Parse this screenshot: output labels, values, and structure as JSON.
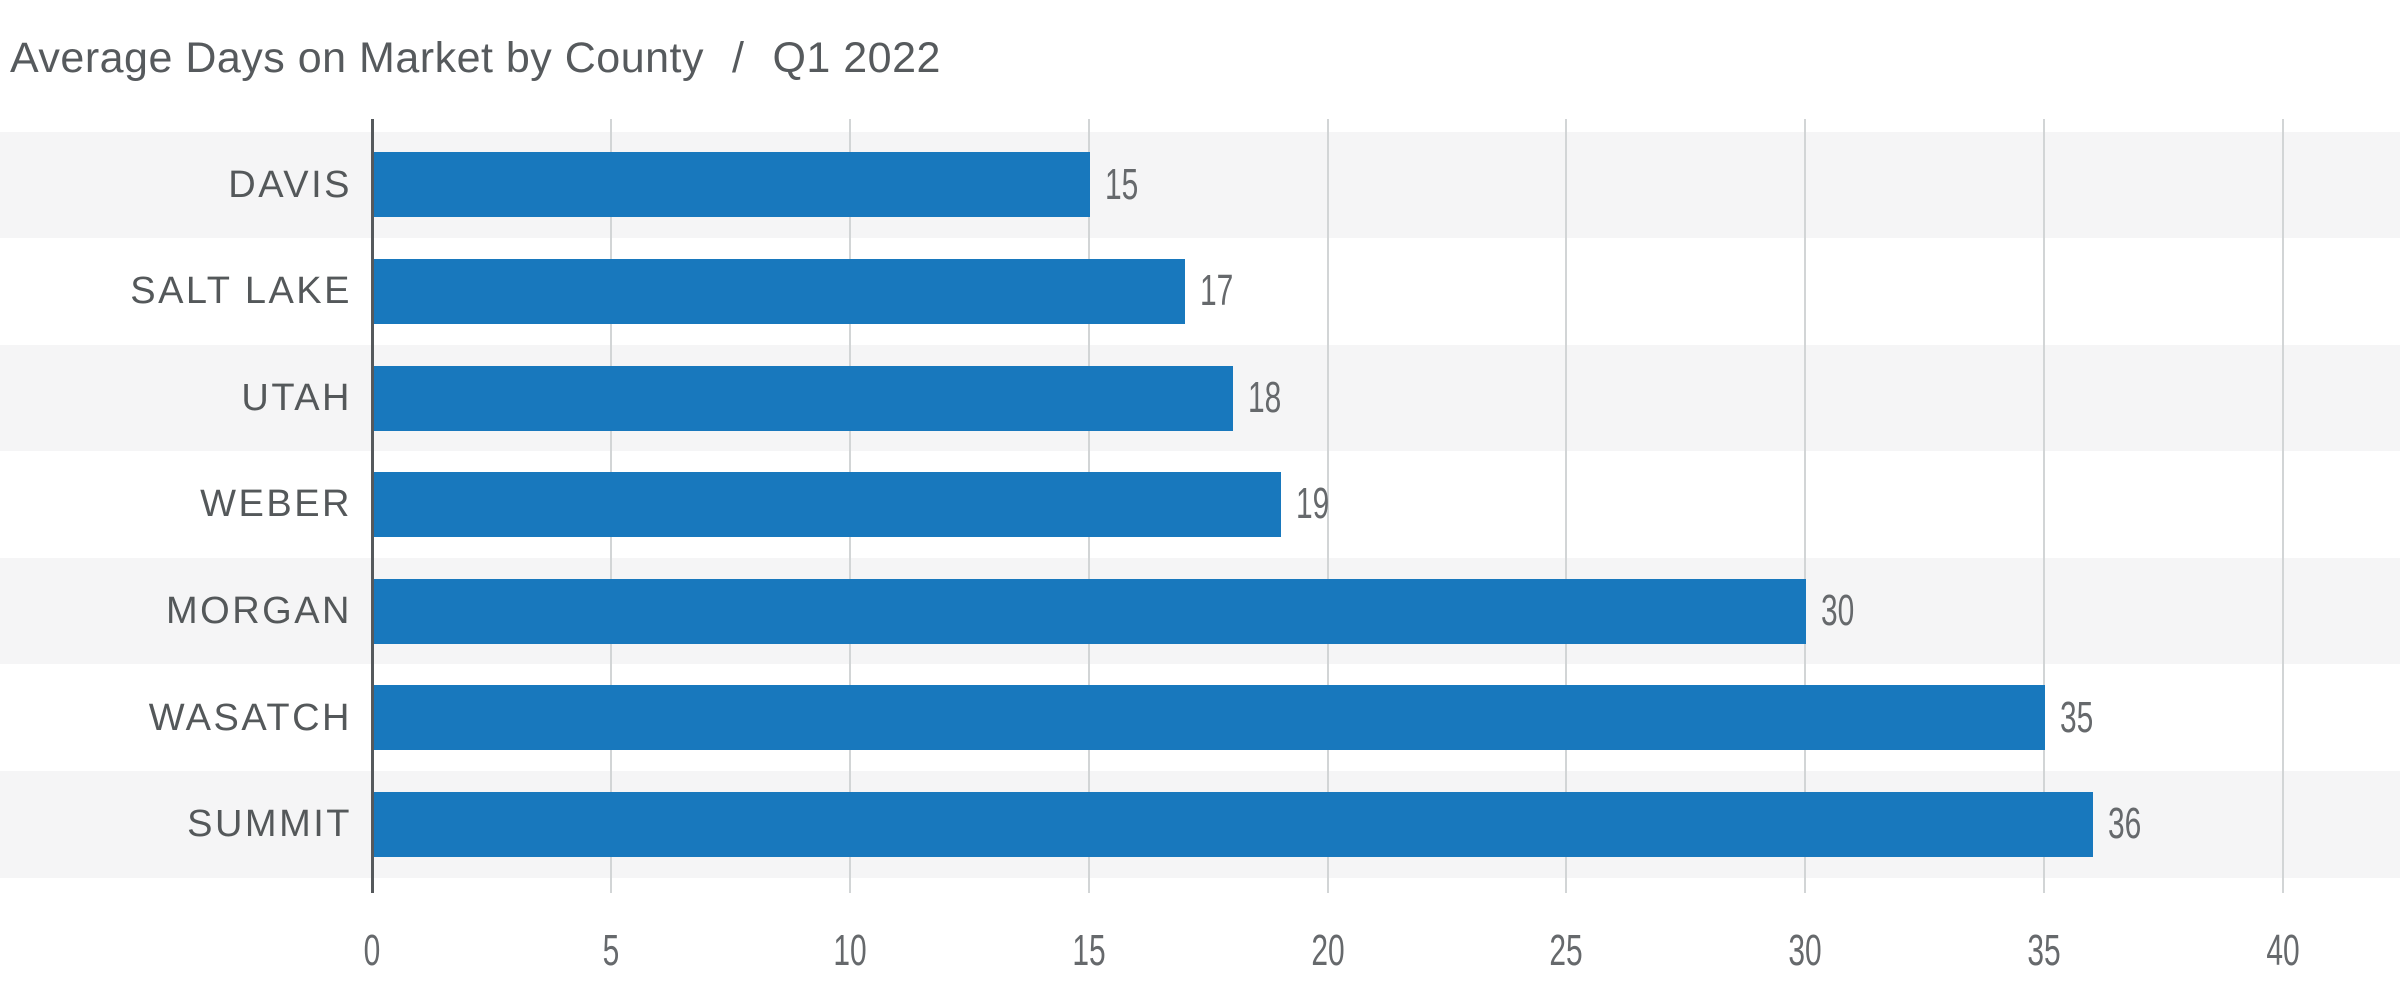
{
  "chart_data": {
    "type": "bar",
    "orientation": "horizontal",
    "title": "Average Days on Market by County",
    "title_separator": "/",
    "subtitle": "Q1 2022",
    "categories": [
      "DAVIS",
      "SALT LAKE",
      "UTAH",
      "WEBER",
      "MORGAN",
      "WASATCH",
      "SUMMIT"
    ],
    "values": [
      15,
      17,
      18,
      19,
      30,
      35,
      36
    ],
    "value_labels": [
      "15",
      "17",
      "18",
      "19",
      "30",
      "35",
      "36"
    ],
    "series": [
      {
        "name": "Average Days on Market",
        "values": [
          15,
          17,
          18,
          19,
          30,
          35,
          36
        ]
      }
    ],
    "xlabel": "",
    "ylabel": "",
    "xlim": [
      0,
      40
    ],
    "x_ticks": [
      0,
      5,
      10,
      15,
      20,
      25,
      30,
      35,
      40
    ],
    "x_tick_labels": [
      "0",
      "5",
      "10",
      "15",
      "20",
      "25",
      "30",
      "35",
      "40"
    ],
    "grid": "vertical-gridlines-on",
    "legend": "none",
    "row_striping": "alternating, first row shaded",
    "colors": {
      "bar": "#1878bd",
      "row_band": "#f5f5f6",
      "gridline": "#d2d5d6",
      "axis_line": "#55595c",
      "title_text": "#565a5d",
      "category_text": "#54585a",
      "value_text": "#66696c",
      "background": "#ffffff"
    }
  }
}
